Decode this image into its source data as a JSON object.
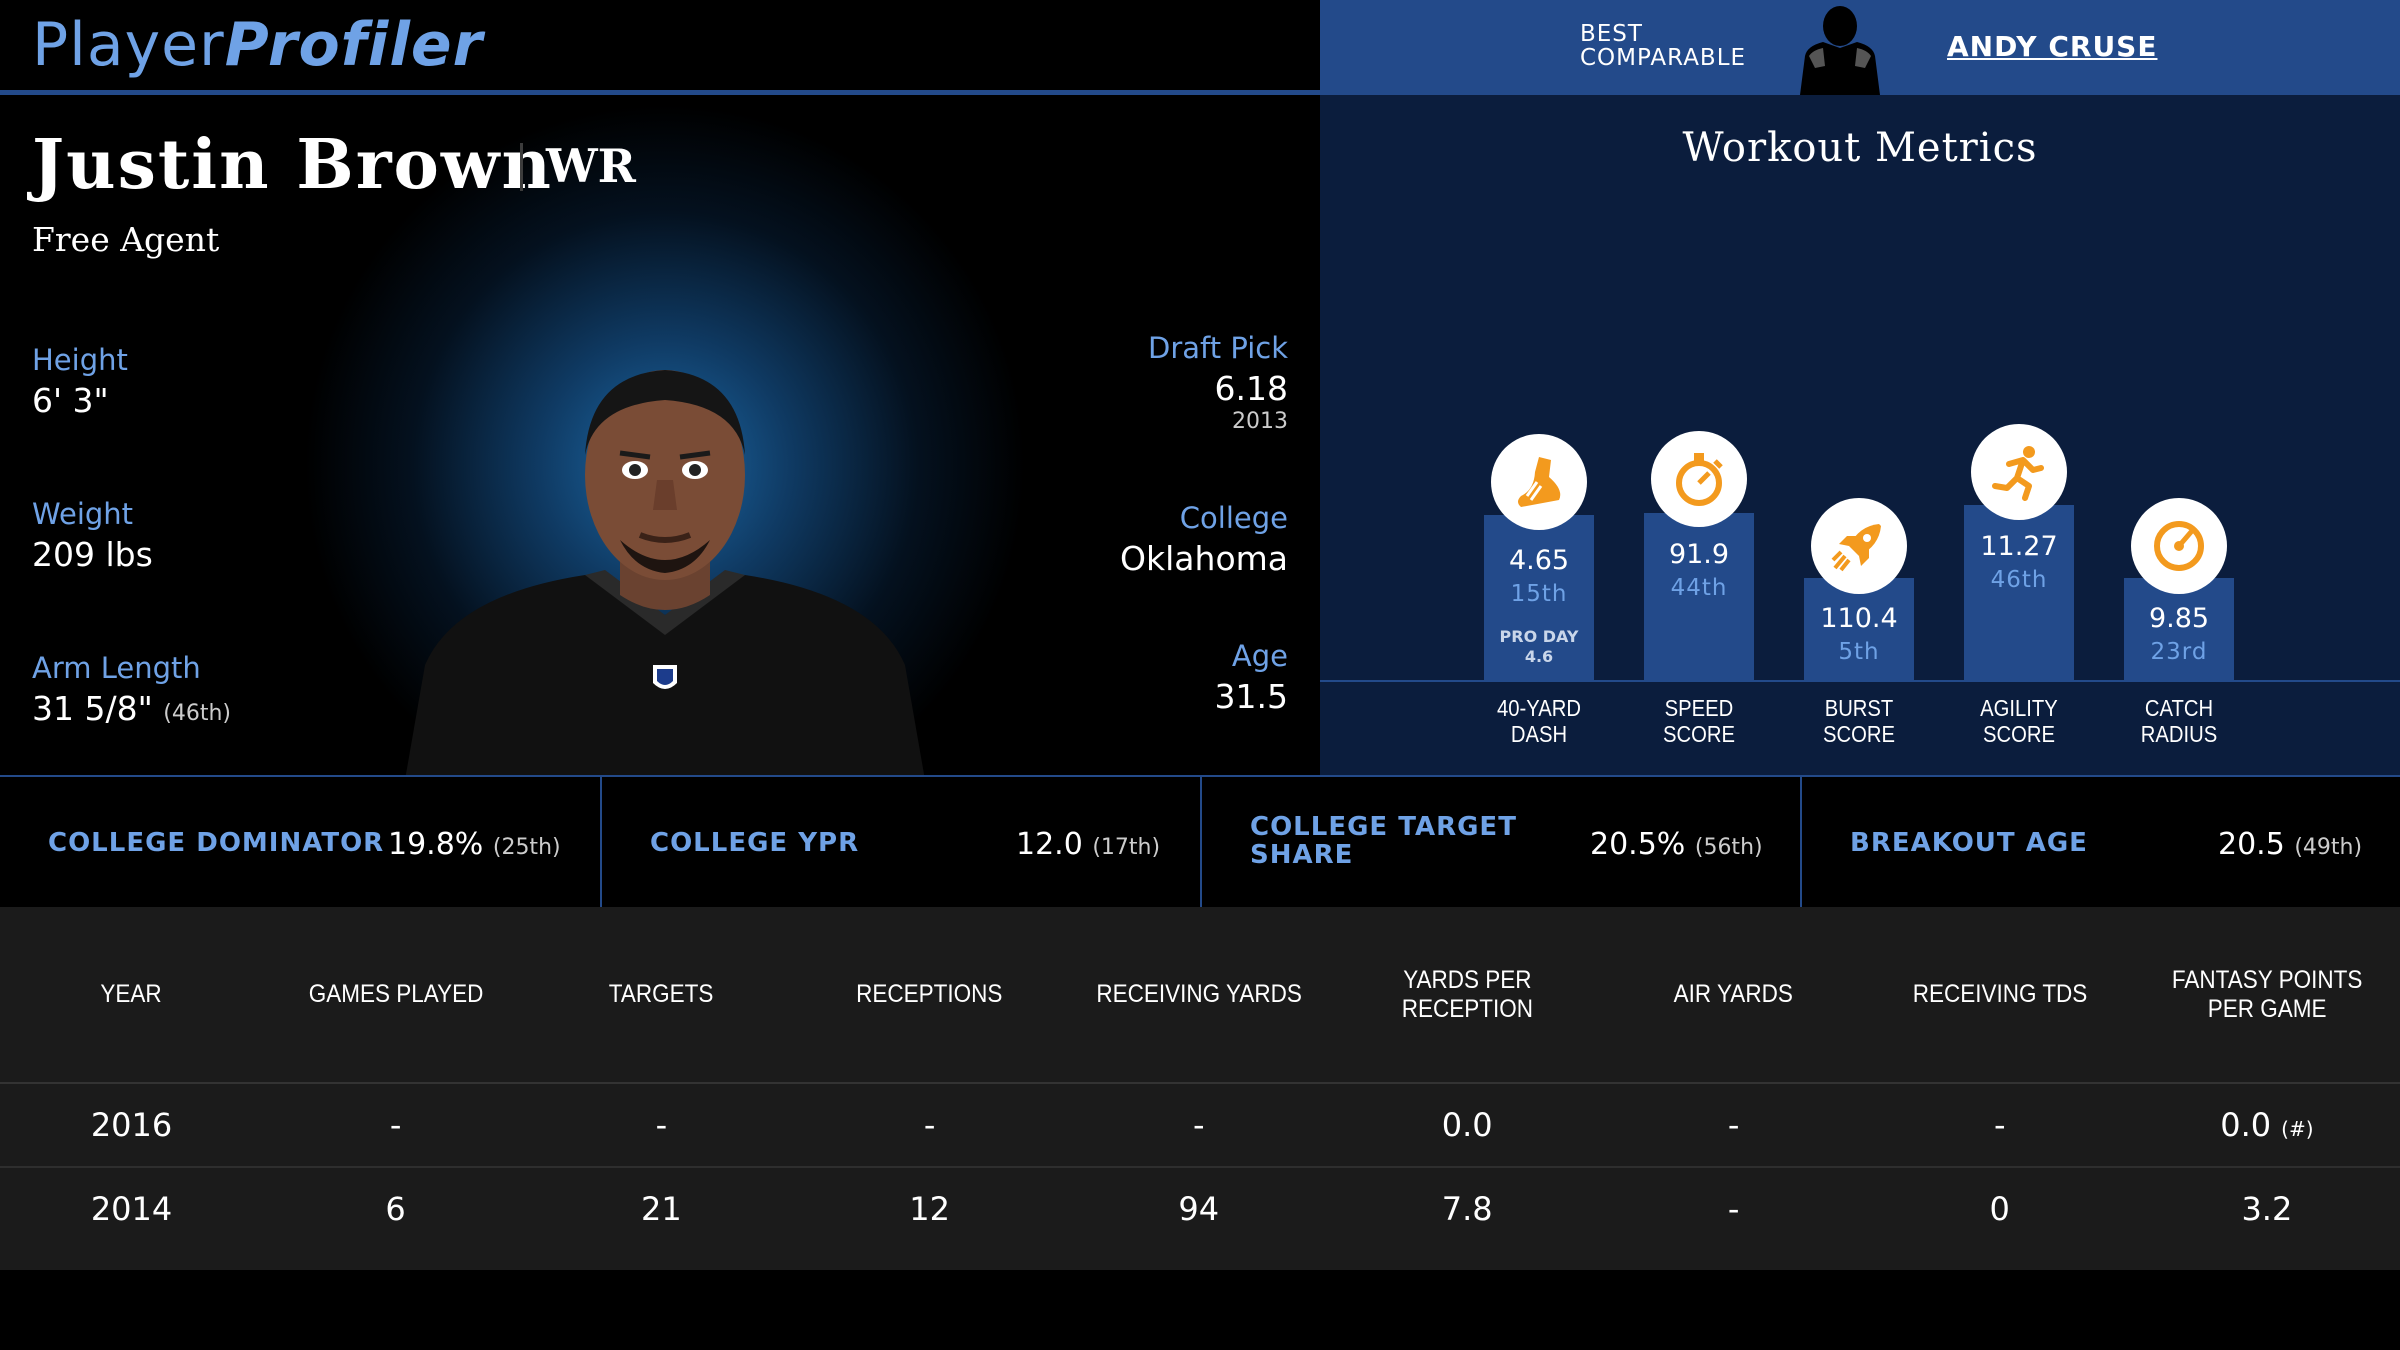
{
  "brand": {
    "part1": "Player",
    "part2": "Profiler"
  },
  "comparable": {
    "label_line1": "BEST",
    "label_line2": "COMPARABLE",
    "name": "ANDY CRUSE",
    "silhouette_icon": "player-silhouette-icon"
  },
  "player": {
    "name": "Justin Brown",
    "position": "WR",
    "team": "Free Agent",
    "height": {
      "label": "Height",
      "value": "6' 3\""
    },
    "weight": {
      "label": "Weight",
      "value": "209 lbs"
    },
    "arm_length": {
      "label": "Arm Length",
      "value": "31 5/8\"",
      "rank": "(46th)"
    },
    "draft_pick": {
      "label": "Draft Pick",
      "value": "6.18",
      "year": "2013"
    },
    "college": {
      "label": "College",
      "value": "Oklahoma"
    },
    "age": {
      "label": "Age",
      "value": "31.5"
    }
  },
  "workout": {
    "title": "Workout Metrics",
    "metrics": [
      {
        "label_line1": "40-YARD",
        "label_line2": "DASH",
        "value": "4.65",
        "percentile": "15th",
        "extra_label": "PRO DAY",
        "extra_value": "4.6",
        "icon": "shoe-icon",
        "pct": 15
      },
      {
        "label_line1": "SPEED",
        "label_line2": "SCORE",
        "value": "91.9",
        "percentile": "44th",
        "icon": "stopwatch-icon",
        "pct": 44
      },
      {
        "label_line1": "BURST",
        "label_line2": "SCORE",
        "value": "110.4",
        "percentile": "5th",
        "icon": "rocket-icon",
        "pct": 5
      },
      {
        "label_line1": "AGILITY",
        "label_line2": "SCORE",
        "value": "11.27",
        "percentile": "46th",
        "icon": "runner-icon",
        "pct": 46
      },
      {
        "label_line1": "CATCH",
        "label_line2": "RADIUS",
        "value": "9.85",
        "percentile": "23rd",
        "icon": "gauge-icon",
        "pct": 23
      }
    ]
  },
  "college_metrics": [
    {
      "label": "COLLEGE DOMINATOR",
      "value": "19.8%",
      "rank": "(25th)"
    },
    {
      "label": "COLLEGE YPR",
      "value": "12.0",
      "rank": "(17th)"
    },
    {
      "label_line1": "COLLEGE TARGET",
      "label_line2": "SHARE",
      "value": "20.5%",
      "rank": "(56th)"
    },
    {
      "label": "BREAKOUT AGE",
      "value": "20.5",
      "rank": "(49th)"
    }
  ],
  "stats_table": {
    "headers": [
      "YEAR",
      "GAMES PLAYED",
      "TARGETS",
      "RECEPTIONS",
      "RECEIVING YARDS",
      "YARDS PER RECEPTION",
      "AIR YARDS",
      "RECEIVING TDS",
      "FANTASY POINTS PER GAME"
    ],
    "rows": [
      [
        "2016",
        "-",
        "-",
        "-",
        "-",
        "0.0",
        "-",
        "-",
        "0.0"
      ],
      [
        "2014",
        "6",
        "21",
        "12",
        "94",
        "7.8",
        "-",
        "0",
        "3.2"
      ]
    ],
    "row1_note": "(#)"
  },
  "colors": {
    "accent_blue": "#6fa2e6",
    "bar_blue": "#234a8a",
    "icon_orange": "#f39a1e",
    "panel_navy": "#0b1d3d"
  }
}
